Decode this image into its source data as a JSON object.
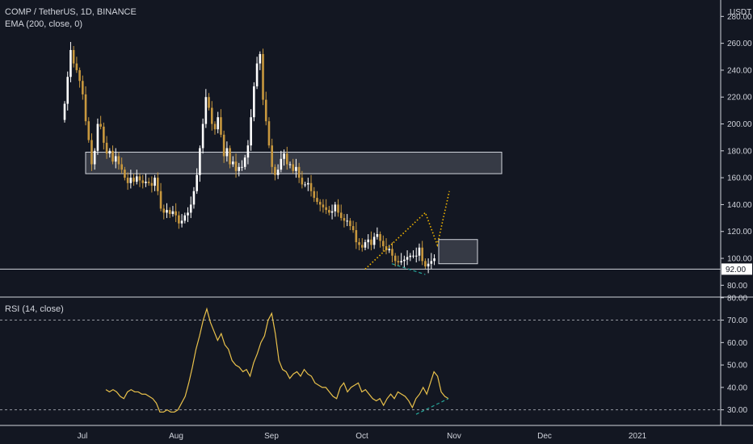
{
  "header": {
    "symbol_line": "COMP / TetherUS, 1D, BINANCE",
    "indicator_line": "EMA (200, close, 0)",
    "rsi_line": "RSI (14, close)",
    "currency": "USDT"
  },
  "colors": {
    "background": "#131722",
    "grid": "#2a2e39",
    "up_candle": "#ffffff",
    "down_candle": "#c8983e",
    "rsi_line": "#e9c14b",
    "zone_fill": "#787b86",
    "projection": "#f5b800",
    "divergence": "#26a69a",
    "text": "#d1d4dc"
  },
  "chart_data": [
    {
      "type": "candlestick",
      "title": "COMP / TetherUS, 1D, BINANCE",
      "ylabel": "USDT",
      "ylim": [
        76,
        285
      ],
      "y_ticks": [
        80,
        100,
        120,
        140,
        160,
        180,
        200,
        220,
        240,
        260,
        280
      ],
      "y_tick_labels": [
        "80.00",
        "100.00",
        "120.00",
        "140.00",
        "160.00",
        "180.00",
        "200.00",
        "220.00",
        "240.00",
        "260.00",
        "280.00"
      ],
      "x_ticks": [
        "Jul",
        "Aug",
        "Sep",
        "Oct",
        "Nov",
        "Dec",
        "2021"
      ],
      "price_line": {
        "value": 92,
        "label": "92.00"
      },
      "legend": "top-left",
      "grid": false,
      "closes": [
        215,
        235,
        255,
        245,
        240,
        232,
        222,
        202,
        188,
        170,
        180,
        200,
        198,
        186,
        178,
        180,
        172,
        176,
        170,
        166,
        160,
        156,
        160,
        157,
        161,
        158,
        156,
        157,
        156,
        154,
        160,
        150,
        137,
        134,
        136,
        133,
        135,
        132,
        126,
        128,
        132,
        134,
        140,
        150,
        162,
        182,
        200,
        220,
        212,
        200,
        196,
        205,
        192,
        176,
        182,
        170,
        172,
        165,
        168,
        168,
        175,
        184,
        205,
        228,
        245,
        252,
        218,
        202,
        184,
        168,
        162,
        166,
        174,
        178,
        170,
        170,
        165,
        168,
        160,
        155,
        155,
        156,
        150,
        145,
        142,
        140,
        138,
        136,
        134,
        135,
        140,
        134,
        130,
        128,
        128,
        124,
        121,
        112,
        110,
        108,
        112,
        114,
        110,
        116,
        118,
        113,
        109,
        106,
        107,
        102,
        98,
        97,
        98,
        99,
        101,
        102,
        102,
        102,
        108,
        98,
        94,
        96,
        98,
        100
      ],
      "zones": [
        {
          "y_from": 163,
          "y_to": 179
        },
        {
          "y_from": 96,
          "y_to": 114
        }
      ],
      "projection_path": [
        [
          100,
          92
        ],
        [
          120,
          134
        ],
        [
          124,
          110
        ],
        [
          128,
          150
        ]
      ]
    },
    {
      "type": "line",
      "title": "RSI (14, close)",
      "ylim": [
        27,
        81
      ],
      "y_ticks": [
        30,
        40,
        50,
        60,
        70,
        80
      ],
      "y_tick_labels": [
        "30.00",
        "40.00",
        "50.00",
        "60.00",
        "70.00",
        "80.00"
      ],
      "bands": [
        30,
        70
      ],
      "values": [
        39,
        38,
        39,
        38,
        36,
        35,
        38,
        39,
        38,
        38,
        37,
        37,
        36,
        35,
        33,
        29,
        29,
        30,
        29,
        29,
        30,
        33,
        36,
        42,
        49,
        57,
        63,
        70,
        75,
        69,
        65,
        61,
        64,
        59,
        57,
        52,
        50,
        49,
        47,
        48,
        45,
        51,
        55,
        60,
        63,
        70,
        73,
        64,
        52,
        48,
        47,
        44,
        46,
        47,
        45,
        48,
        46,
        45,
        42,
        41,
        40,
        40,
        38,
        36,
        35,
        40,
        42,
        38,
        40,
        41,
        42,
        38,
        39,
        37,
        35,
        34,
        35,
        32,
        35,
        37,
        35,
        38,
        37,
        36,
        34,
        31,
        35,
        37,
        40,
        37,
        42,
        47,
        45,
        38,
        36,
        35
      ]
    }
  ]
}
